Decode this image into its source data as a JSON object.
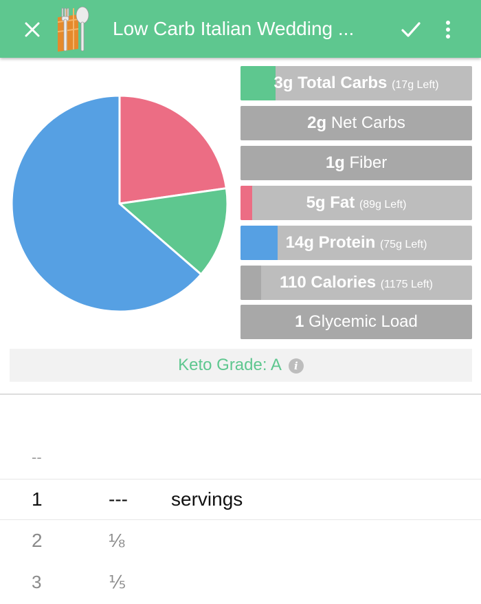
{
  "appbar": {
    "title": "Low Carb Italian Wedding ...",
    "background": "#5ec78f"
  },
  "icons": {
    "close": "close-icon",
    "app": "fork-spoon-napkin-icon",
    "confirm": "check-icon",
    "more": "more-vert-icon"
  },
  "colors": {
    "carbs": "#5ec78f",
    "fat": "#ec6d84",
    "protein": "#56a0e3",
    "bar_track": "#bdbdbd",
    "bar_neutral": "#a8a8a8",
    "grade_text": "#5ec78f"
  },
  "chart_data": {
    "type": "pie",
    "slices": [
      {
        "label": "Carbs",
        "value": 3,
        "color": "#5ec78f"
      },
      {
        "label": "Fat",
        "value": 5,
        "color": "#ec6d84"
      },
      {
        "label": "Protein",
        "value": 14,
        "color": "#56a0e3"
      }
    ]
  },
  "nutrients": [
    {
      "value": "3g",
      "label": "Total Carbs",
      "left": "(17g Left)",
      "progress": 0.15,
      "fill": "#5ec78f"
    },
    {
      "value": "2g",
      "label": "Net Carbs",
      "left": "",
      "progress": 1.0,
      "fill": "#a8a8a8"
    },
    {
      "value": "1g",
      "label": "Fiber",
      "left": "",
      "progress": 1.0,
      "fill": "#a8a8a8"
    },
    {
      "value": "5g",
      "label": "Fat",
      "left": "(89g Left)",
      "progress": 0.05,
      "fill": "#ec6d84"
    },
    {
      "value": "14g",
      "label": "Protein",
      "left": "(75g Left)",
      "progress": 0.16,
      "fill": "#56a0e3"
    },
    {
      "value": "110",
      "label": "Calories",
      "left": "(1175 Left)",
      "progress": 0.09,
      "fill": "#a8a8a8"
    },
    {
      "value": "1",
      "label": "Glycemic Load",
      "left": "",
      "progress": 1.0,
      "fill": "#a8a8a8"
    }
  ],
  "grade": {
    "text": "Keto Grade: A",
    "info": "i"
  },
  "picker": {
    "rows": [
      {
        "qty": "--",
        "fraction": "",
        "unit": ""
      },
      {
        "qty": "1",
        "fraction": "---",
        "unit": "servings"
      },
      {
        "qty": "2",
        "fraction": "⅛",
        "unit": ""
      },
      {
        "qty": "3",
        "fraction": "⅕",
        "unit": ""
      }
    ]
  }
}
